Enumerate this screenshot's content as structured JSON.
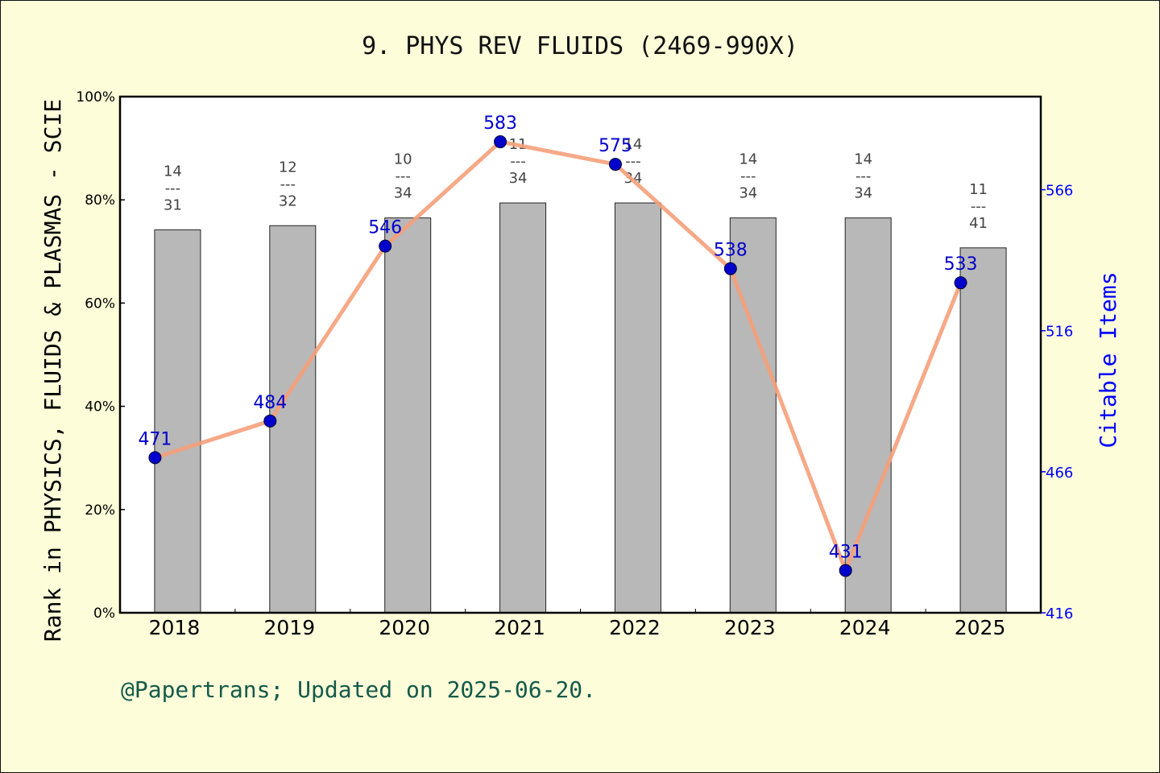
{
  "chart_data": {
    "type": "bar",
    "title": "9. PHYS REV FLUIDS (2469-990X)",
    "ylabel": "Rank in PHYSICS, FLUIDS & PLASMAS - SCIE",
    "y2label": "Citable Items",
    "footer": "@Papertrans; Updated on 2025-06-20.",
    "categories": [
      "2018",
      "2019",
      "2020",
      "2021",
      "2022",
      "2023",
      "2024",
      "2025"
    ],
    "ylim": [
      0,
      100
    ],
    "yticks": [
      "0%",
      "20%",
      "40%",
      "60%",
      "80%",
      "100%"
    ],
    "y2lim": [
      416,
      599
    ],
    "y2ticks": [
      416,
      466,
      516,
      566
    ],
    "grid": false,
    "series": [
      {
        "kind": "bar",
        "values": [
          74.2,
          75.0,
          76.5,
          79.4,
          79.4,
          76.5,
          76.5,
          70.7
        ],
        "rank": [
          "14",
          "12",
          "10",
          "11",
          "14",
          "14",
          "14",
          "11"
        ],
        "total": [
          "31",
          "32",
          "34",
          "34",
          "34",
          "34",
          "34",
          "41"
        ],
        "separator": "---",
        "color": "#b8b8b8"
      },
      {
        "kind": "line",
        "axis": "right",
        "values": [
          471,
          484,
          546,
          583,
          575,
          538,
          431,
          533
        ],
        "labels": [
          "471",
          "484",
          "546",
          "583",
          "575",
          "538",
          "431",
          "533"
        ],
        "line_color": "#f5a07a",
        "marker_color": "#0000cc"
      }
    ],
    "colors": {
      "background": "#fdfdd9",
      "plot_background": "#ffffff",
      "title": "#111111",
      "left_axis": "#000000",
      "right_axis": "#0000ff",
      "footer": "#145a4a",
      "bar_label": "#444444"
    }
  }
}
